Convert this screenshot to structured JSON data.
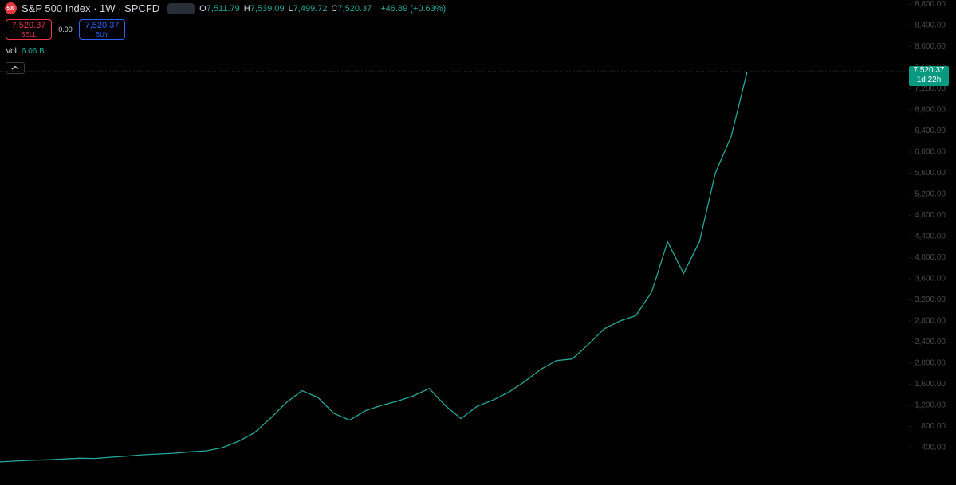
{
  "header": {
    "logo": "500",
    "symbol": "S&P 500 Index · 1W · SPCFD",
    "ohlc": [
      {
        "key": "O",
        "value": "7,511.79"
      },
      {
        "key": "H",
        "value": "7,539.09"
      },
      {
        "key": "L",
        "value": "7,499.72"
      },
      {
        "key": "C",
        "value": "7,520.37"
      }
    ],
    "change": "+46.89 (+0.63%)",
    "sell": {
      "price": "7,520.37",
      "label": "SELL"
    },
    "spread": "0.00",
    "buy": {
      "price": "7,520.37",
      "label": "BUY"
    },
    "volume": {
      "label": "Vol",
      "value": "6.06 B"
    }
  },
  "chart_data": {
    "type": "line",
    "color": "#26a69a",
    "values": [
      130,
      145,
      160,
      170,
      185,
      200,
      195,
      220,
      240,
      265,
      280,
      295,
      320,
      340,
      400,
      520,
      680,
      950,
      1250,
      1480,
      1350,
      1050,
      920,
      1100,
      1200,
      1280,
      1380,
      1520,
      1200,
      950,
      1180,
      1300,
      1450,
      1650,
      1880,
      2050,
      2080,
      2350,
      2650,
      2800,
      2900,
      3350,
      4300,
      3700,
      4300,
      5600,
      6300,
      7520.37
    ],
    "ylim": [
      -309,
      8883
    ],
    "yticks": [
      {
        "value": 400,
        "label": "400.00"
      },
      {
        "value": 800,
        "label": "800.00"
      },
      {
        "value": 1200,
        "label": "1,200.00"
      },
      {
        "value": 1600,
        "label": "1,600.00"
      },
      {
        "value": 2000,
        "label": "2,000.00"
      },
      {
        "value": 2400,
        "label": "2,400.00"
      },
      {
        "value": 2800,
        "label": "2,800.00"
      },
      {
        "value": 3200,
        "label": "3,200.00"
      },
      {
        "value": 3600,
        "label": "3,600.00"
      },
      {
        "value": 4000,
        "label": "4,000.00"
      },
      {
        "value": 4400,
        "label": "4,400.00"
      },
      {
        "value": 4800,
        "label": "4,800.00"
      },
      {
        "value": 5200,
        "label": "5,200.00"
      },
      {
        "value": 5600,
        "label": "5,600.00"
      },
      {
        "value": 6000,
        "label": "6,000.00"
      },
      {
        "value": 6400,
        "label": "6,400.00"
      },
      {
        "value": 6800,
        "label": "6,800.00"
      },
      {
        "value": 7200,
        "label": "7,200.00"
      },
      {
        "value": 7600,
        "label": "7,600.00"
      },
      {
        "value": 8000,
        "label": "8,000.00"
      },
      {
        "value": 8400,
        "label": "8,400.00"
      },
      {
        "value": 8800,
        "label": "8,800.00"
      }
    ],
    "last_price": {
      "value": 7520.37,
      "label": "7,520.37"
    },
    "countdown": "1d 22h"
  }
}
